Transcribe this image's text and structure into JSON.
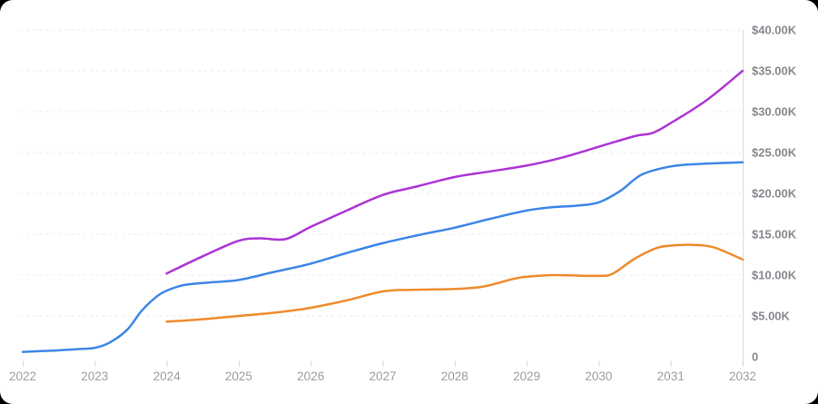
{
  "page": {
    "background": "#000000",
    "card_background": "#ffffff"
  },
  "chart_data": {
    "type": "line",
    "title": "",
    "units": "USD thousands (K)",
    "legend": null,
    "grid": {
      "horizontal": true,
      "style": "dashed",
      "vertical": false
    },
    "x_axis": {
      "min": 2022,
      "max": 2032,
      "ticks": [
        {
          "value": 2022,
          "label": "2022"
        },
        {
          "value": 2023,
          "label": "2023"
        },
        {
          "value": 2024,
          "label": "2024"
        },
        {
          "value": 2025,
          "label": "2025"
        },
        {
          "value": 2026,
          "label": "2026"
        },
        {
          "value": 2027,
          "label": "2027"
        },
        {
          "value": 2028,
          "label": "2028"
        },
        {
          "value": 2029,
          "label": "2029"
        },
        {
          "value": 2030,
          "label": "2030"
        },
        {
          "value": 2031,
          "label": "2031"
        },
        {
          "value": 2032,
          "label": "2032"
        }
      ]
    },
    "y_axis": {
      "side": "right",
      "min_k": 0,
      "max_k": 40,
      "ticks": [
        {
          "value_k": 0,
          "label": "0"
        },
        {
          "value_k": 5,
          "label": "$5.00K"
        },
        {
          "value_k": 10,
          "label": "$10.00K"
        },
        {
          "value_k": 15,
          "label": "$15.00K"
        },
        {
          "value_k": 20,
          "label": "$20.00K"
        },
        {
          "value_k": 25,
          "label": "$25.00K"
        },
        {
          "value_k": 30,
          "label": "$30.00K"
        },
        {
          "value_k": 35,
          "label": "$35.00K"
        },
        {
          "value_k": 40,
          "label": "$40.00K"
        }
      ]
    },
    "series": [
      {
        "name": "blue-series",
        "color": "#3d86e8",
        "points_year_valueK": [
          [
            2022.0,
            0.6
          ],
          [
            2022.4,
            0.75
          ],
          [
            2022.8,
            0.95
          ],
          [
            2023.0,
            1.1
          ],
          [
            2023.2,
            1.7
          ],
          [
            2023.45,
            3.3
          ],
          [
            2023.65,
            5.6
          ],
          [
            2023.85,
            7.3
          ],
          [
            2024.0,
            8.1
          ],
          [
            2024.25,
            8.8
          ],
          [
            2024.6,
            9.1
          ],
          [
            2025.0,
            9.4
          ],
          [
            2025.5,
            10.4
          ],
          [
            2026.0,
            11.4
          ],
          [
            2026.5,
            12.7
          ],
          [
            2027.0,
            13.9
          ],
          [
            2027.5,
            14.9
          ],
          [
            2028.0,
            15.8
          ],
          [
            2028.5,
            16.9
          ],
          [
            2029.0,
            17.9
          ],
          [
            2029.35,
            18.3
          ],
          [
            2029.7,
            18.5
          ],
          [
            2030.0,
            18.9
          ],
          [
            2030.3,
            20.3
          ],
          [
            2030.6,
            22.3
          ],
          [
            2031.0,
            23.3
          ],
          [
            2031.4,
            23.6
          ],
          [
            2032.0,
            23.8
          ]
        ]
      },
      {
        "name": "orange-series",
        "color": "#ee8c2e",
        "points_year_valueK": [
          [
            2024.0,
            4.3
          ],
          [
            2024.5,
            4.6
          ],
          [
            2025.0,
            5.0
          ],
          [
            2025.5,
            5.4
          ],
          [
            2026.0,
            6.0
          ],
          [
            2026.5,
            6.9
          ],
          [
            2027.0,
            8.0
          ],
          [
            2027.4,
            8.2
          ],
          [
            2028.0,
            8.3
          ],
          [
            2028.4,
            8.6
          ],
          [
            2028.8,
            9.5
          ],
          [
            2029.0,
            9.8
          ],
          [
            2029.4,
            10.0
          ],
          [
            2030.0,
            9.9
          ],
          [
            2030.2,
            10.2
          ],
          [
            2030.5,
            12.0
          ],
          [
            2030.8,
            13.3
          ],
          [
            2031.0,
            13.6
          ],
          [
            2031.3,
            13.7
          ],
          [
            2031.6,
            13.4
          ],
          [
            2032.0,
            11.9
          ]
        ]
      },
      {
        "name": "purple-series",
        "color": "#ad35d6",
        "points_year_valueK": [
          [
            2024.0,
            10.2
          ],
          [
            2024.5,
            12.3
          ],
          [
            2025.0,
            14.2
          ],
          [
            2025.3,
            14.5
          ],
          [
            2025.65,
            14.4
          ],
          [
            2026.0,
            15.9
          ],
          [
            2026.5,
            17.9
          ],
          [
            2027.0,
            19.8
          ],
          [
            2027.5,
            20.9
          ],
          [
            2028.0,
            22.0
          ],
          [
            2028.5,
            22.7
          ],
          [
            2029.0,
            23.4
          ],
          [
            2029.5,
            24.4
          ],
          [
            2030.0,
            25.7
          ],
          [
            2030.5,
            27.0
          ],
          [
            2030.75,
            27.4
          ],
          [
            2031.0,
            28.6
          ],
          [
            2031.5,
            31.4
          ],
          [
            2032.0,
            35.0
          ]
        ]
      }
    ],
    "style_colors": {
      "grid_line": "#ebebeb",
      "axis_line": "#d9d9d9",
      "tick_mark": "#d2d2d2",
      "y_label_text": "#87888e",
      "x_label_text": "#9b9da3"
    }
  }
}
